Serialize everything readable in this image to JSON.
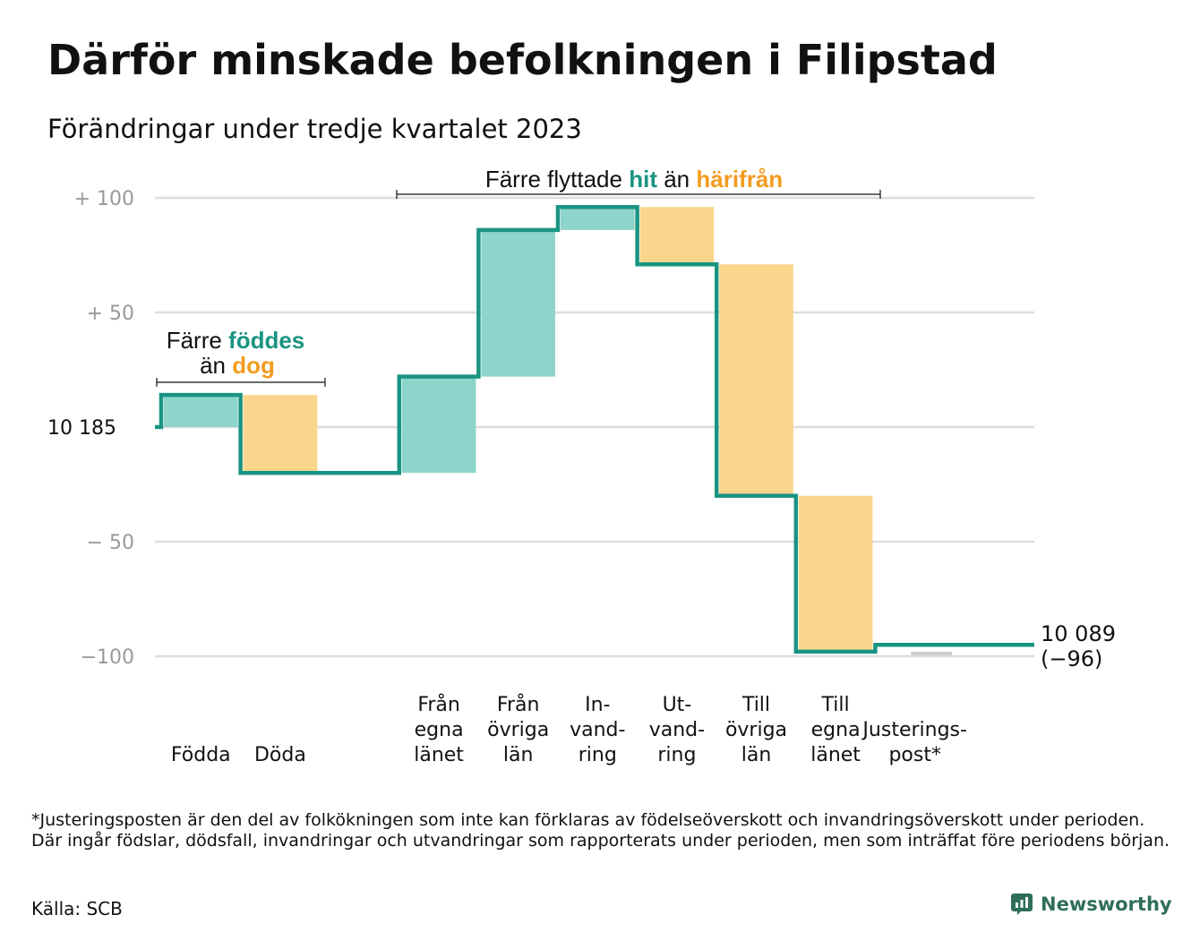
{
  "title": "Därför minskade befolkningen i Filipstad",
  "subtitle": "Förändringar under tredje kvartalet 2023",
  "colors": {
    "teal": "#1a9482",
    "teal_fill": "#8dd4ca",
    "orange_fill": "#fad58c",
    "orange_text": "#f29c1f",
    "grid": "#dddddd",
    "tick": "#999999",
    "adjust_fill": "#cccccc"
  },
  "annotations": {
    "births_line1_a": "Färre ",
    "births_line1_b": "föddes",
    "births_line2_a": "än ",
    "births_line2_b": "dog",
    "migration_a": "Färre flyttade ",
    "migration_b": "hit",
    "migration_c": " än ",
    "migration_d": "härifrån"
  },
  "start_label": "10  185",
  "end_label_line1": "10 089",
  "end_label_line2": "(−96)",
  "chart_data": {
    "type": "waterfall",
    "start_value": 10185,
    "end_value": 10089,
    "net_change": -96,
    "yticks": [
      {
        "value": 100,
        "label": "+  100"
      },
      {
        "value": 50,
        "label": "+  50"
      },
      {
        "value": 0,
        "label": ""
      },
      {
        "value": -50,
        "label": "−  50"
      },
      {
        "value": -100,
        "label": "−100"
      }
    ],
    "ylim": [
      -100,
      100
    ],
    "steps": [
      {
        "label": [
          "Födda"
        ],
        "change": 14,
        "kind": "in"
      },
      {
        "label": [
          "Döda"
        ],
        "change": -34,
        "kind": "out"
      },
      {
        "label": [],
        "change": 0,
        "kind": "gap"
      },
      {
        "label": [
          "Från",
          "egna",
          "länet"
        ],
        "change": 42,
        "kind": "in"
      },
      {
        "label": [
          "Från",
          "övriga",
          "län"
        ],
        "change": 64,
        "kind": "in"
      },
      {
        "label": [
          "In-",
          "vand-",
          "ring"
        ],
        "change": 10,
        "kind": "in"
      },
      {
        "label": [
          "Ut-",
          "vand-",
          "ring"
        ],
        "change": -25,
        "kind": "out"
      },
      {
        "label": [
          "Till",
          "övriga",
          "län"
        ],
        "change": -101,
        "kind": "out"
      },
      {
        "label": [
          "Till",
          "egna",
          "länet"
        ],
        "change": -68,
        "kind": "out"
      },
      {
        "label": [
          "Justerings-",
          "post*"
        ],
        "change": 3,
        "kind": "adjust"
      }
    ]
  },
  "footnote": "*Justeringsposten är den del av folkökningen som inte kan förklaras av födelseöverskott och invandringsöverskott under perioden. Där ingår födslar, dödsfall, invandringar och utvandringar som rapporterats under perioden, men som inträffat före periodens början.",
  "source": "Källa: SCB",
  "brand": "Newsworthy"
}
